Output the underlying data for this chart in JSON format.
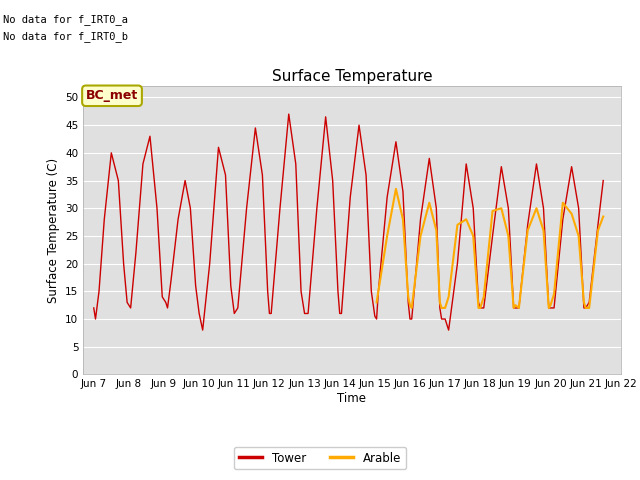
{
  "title": "Surface Temperature",
  "ylabel": "Surface Temperature (C)",
  "xlabel": "Time",
  "ylim": [
    0,
    52
  ],
  "yticks": [
    0,
    5,
    10,
    15,
    20,
    25,
    30,
    35,
    40,
    45,
    50
  ],
  "bg_color": "#e0e0e0",
  "fig_color": "#ffffff",
  "annotation1": "No data for f_IRT0_a",
  "annotation2": "No data for f_IRT0_b",
  "bc_met_label": "BC_met",
  "legend_entries": [
    "Tower",
    "Arable"
  ],
  "tower_color": "#cc0000",
  "arable_color": "#ffaa00",
  "xticklabels": [
    "Jun 7",
    "Jun 8",
    "Jun 9",
    "Jun 10",
    "Jun 11",
    "Jun 12",
    "Jun 13",
    "Jun 14",
    "Jun 15",
    "Jun 16",
    "Jun 17",
    "Jun 18",
    "Jun 19",
    "Jun 20",
    "Jun 21",
    "Jun 22"
  ],
  "tower_x": [
    7.0,
    7.05,
    7.15,
    7.3,
    7.5,
    7.7,
    7.85,
    7.95,
    8.05,
    8.2,
    8.4,
    8.6,
    8.8,
    8.95,
    9.05,
    9.1,
    9.2,
    9.4,
    9.6,
    9.75,
    9.9,
    10.0,
    10.1,
    10.3,
    10.55,
    10.75,
    10.9,
    11.0,
    11.1,
    11.35,
    11.6,
    11.8,
    11.95,
    12.0,
    12.05,
    12.3,
    12.55,
    12.75,
    12.9,
    13.0,
    13.1,
    13.35,
    13.6,
    13.8,
    13.95,
    14.0,
    14.05,
    14.3,
    14.55,
    14.75,
    14.9,
    15.0,
    15.05,
    15.1,
    15.35,
    15.6,
    15.8,
    15.95,
    16.0,
    16.05,
    16.3,
    16.55,
    16.75,
    16.85,
    16.9,
    17.0,
    17.1,
    17.35,
    17.6,
    17.8,
    17.95,
    18.0,
    18.1,
    18.35,
    18.6,
    18.8,
    18.95,
    19.0,
    19.1,
    19.35,
    19.6,
    19.8,
    19.95,
    20.0,
    20.1,
    20.35,
    20.6,
    20.8,
    20.95,
    21.0,
    21.1,
    21.35,
    21.5
  ],
  "tower_y": [
    12.0,
    10.0,
    15.0,
    28.0,
    40.0,
    35.0,
    20.0,
    13.0,
    12.0,
    22.0,
    38.0,
    43.0,
    30.0,
    14.0,
    13.0,
    12.0,
    17.0,
    28.0,
    35.0,
    30.0,
    16.0,
    11.0,
    8.0,
    20.0,
    41.0,
    36.0,
    16.0,
    11.0,
    12.0,
    30.0,
    44.5,
    36.0,
    15.0,
    11.0,
    11.0,
    30.0,
    47.0,
    38.0,
    15.0,
    11.0,
    11.0,
    30.0,
    46.5,
    35.0,
    15.0,
    11.0,
    11.0,
    32.0,
    45.0,
    36.0,
    15.0,
    10.5,
    10.0,
    15.0,
    32.0,
    42.0,
    33.0,
    13.0,
    10.0,
    10.0,
    28.0,
    39.0,
    30.0,
    12.0,
    10.0,
    10.0,
    8.0,
    20.0,
    38.0,
    30.0,
    13.0,
    12.0,
    12.0,
    25.0,
    37.5,
    30.0,
    12.0,
    12.0,
    12.0,
    27.0,
    38.0,
    30.0,
    12.0,
    12.0,
    12.0,
    28.0,
    37.5,
    30.0,
    12.0,
    12.0,
    13.0,
    27.0,
    35.0
  ],
  "arable_x": [
    15.05,
    15.1,
    15.35,
    15.6,
    15.8,
    15.95,
    16.0,
    16.05,
    16.3,
    16.55,
    16.75,
    16.85,
    16.9,
    17.0,
    17.1,
    17.35,
    17.6,
    17.8,
    17.95,
    18.0,
    18.1,
    18.35,
    18.6,
    18.8,
    18.95,
    19.0,
    19.1,
    19.35,
    19.6,
    19.8,
    19.95,
    20.0,
    20.1,
    20.35,
    20.6,
    20.8,
    20.95,
    21.0,
    21.1,
    21.35,
    21.5
  ],
  "arable_y": [
    13.0,
    15.0,
    25.0,
    33.5,
    28.0,
    14.0,
    12.5,
    12.0,
    25.0,
    31.0,
    26.0,
    13.0,
    12.0,
    12.0,
    14.0,
    27.0,
    28.0,
    25.0,
    12.0,
    12.0,
    14.0,
    29.5,
    30.0,
    25.0,
    12.0,
    12.5,
    12.0,
    26.0,
    30.0,
    26.0,
    12.0,
    12.5,
    14.5,
    31.0,
    29.0,
    25.0,
    13.0,
    12.0,
    12.0,
    26.0,
    28.5
  ]
}
